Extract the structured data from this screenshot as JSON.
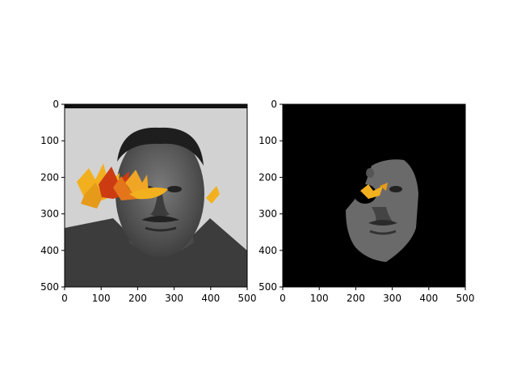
{
  "figure": {
    "background": "#ffffff",
    "panels": [
      {
        "name": "left",
        "content": "grayscale portrait with autumn leaves overlay",
        "x_ticks": [
          "0",
          "100",
          "200",
          "300",
          "400",
          "500"
        ],
        "y_ticks": [
          "0",
          "100",
          "200",
          "300",
          "400",
          "500"
        ]
      },
      {
        "name": "right",
        "content": "segmented face on black background with leaf fragments",
        "x_ticks": [
          "0",
          "100",
          "200",
          "300",
          "400",
          "500"
        ],
        "y_ticks": [
          "0",
          "100",
          "200",
          "300",
          "400",
          "500"
        ]
      }
    ],
    "colors": {
      "leaf_yellow": "#f2b01e",
      "leaf_orange": "#e5751a",
      "leaf_red": "#cc3b12",
      "mask_black": "#000000"
    }
  }
}
